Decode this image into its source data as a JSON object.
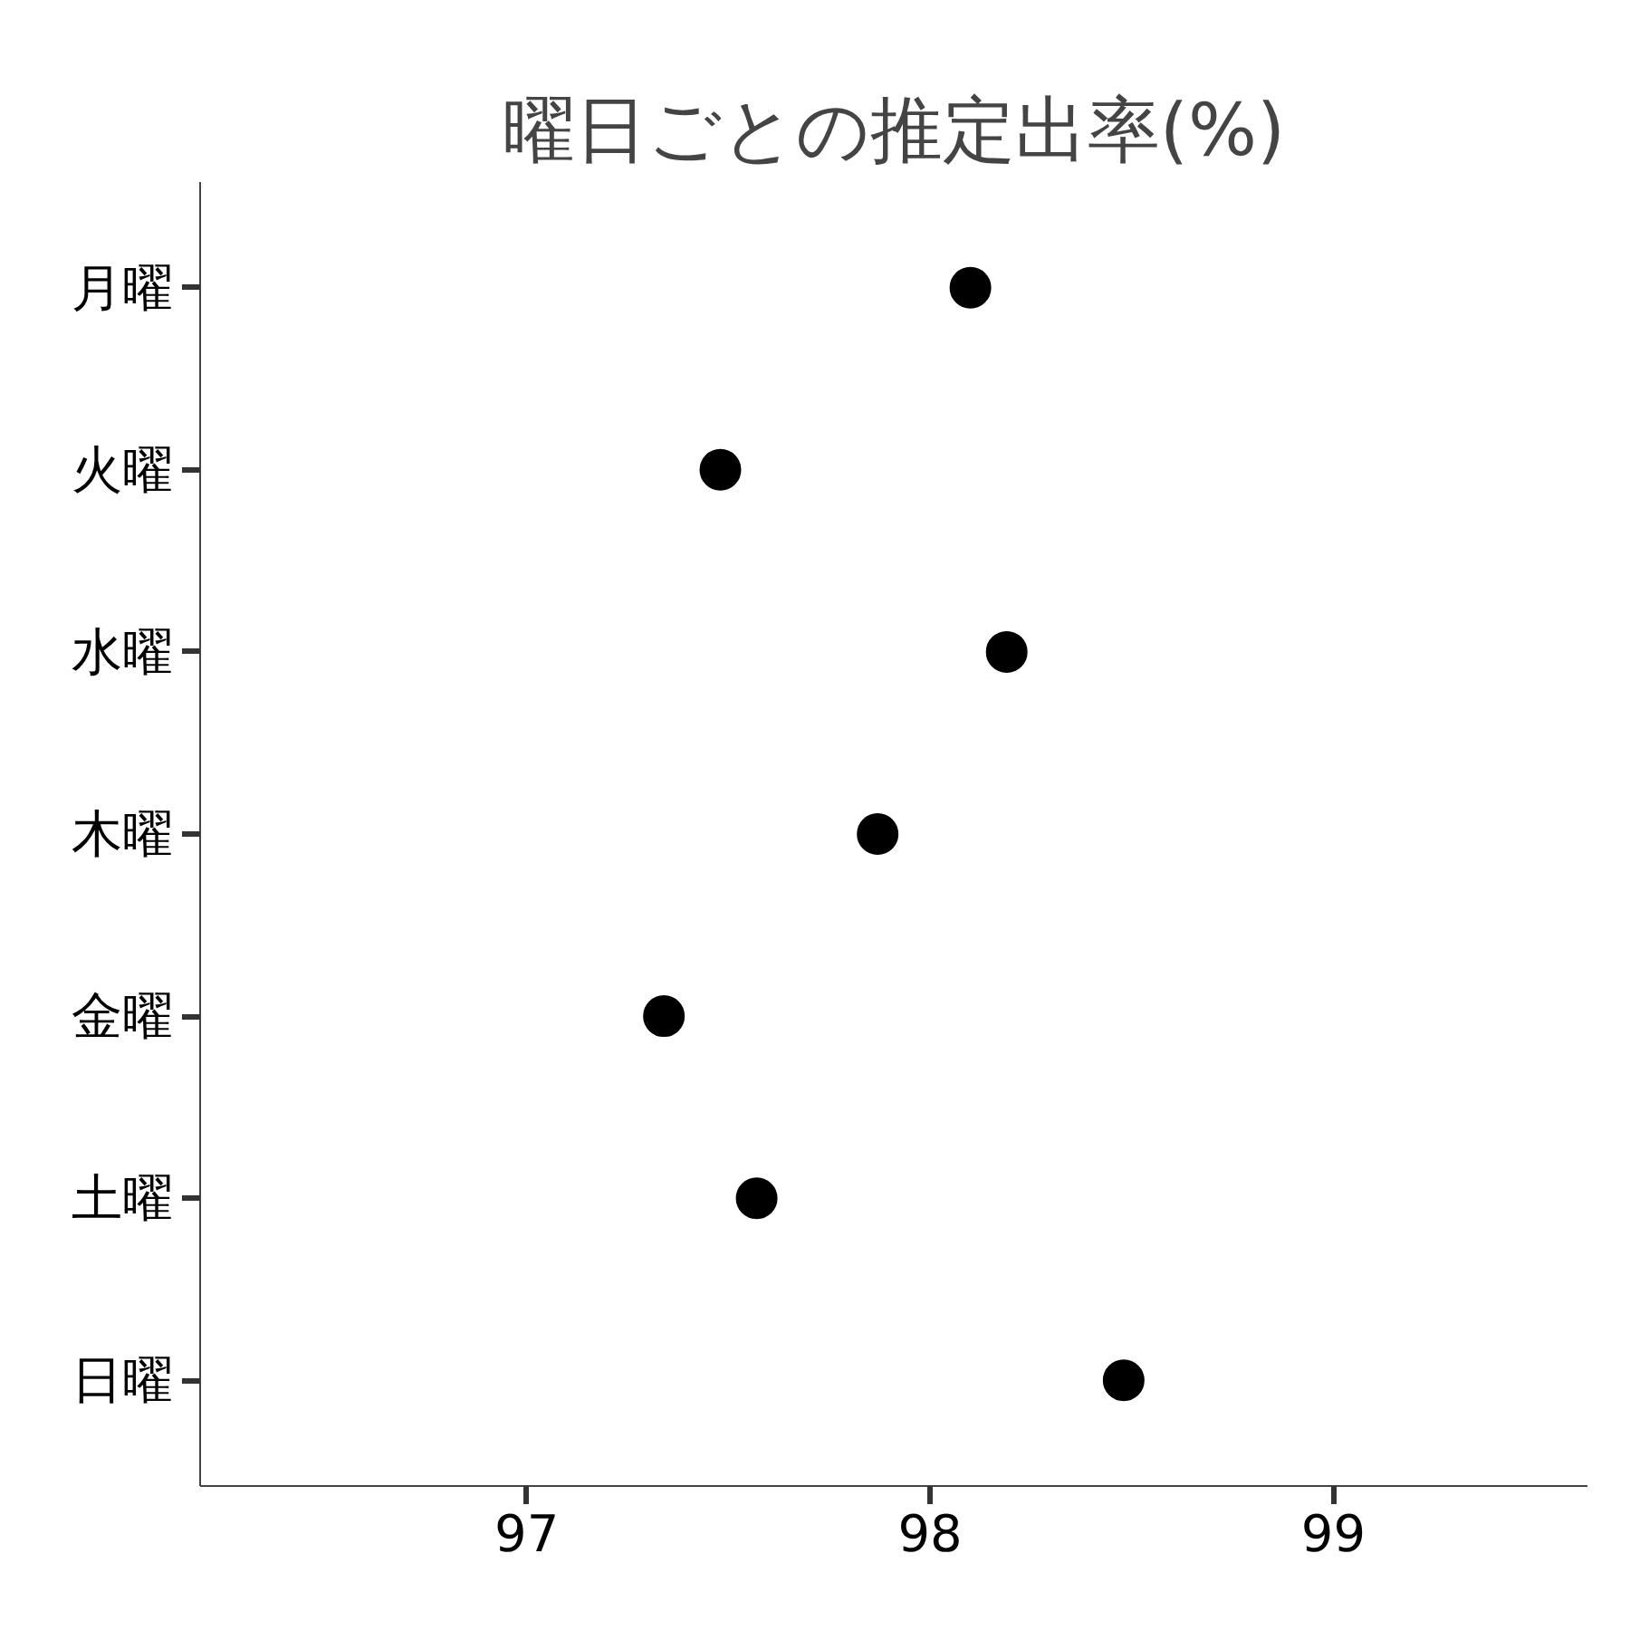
{
  "chart_data": {
    "type": "scatter",
    "title": "曜日ごとの推定出率(%)",
    "categories": [
      "月曜",
      "火曜",
      "水曜",
      "木曜",
      "金曜",
      "土曜",
      "日曜"
    ],
    "orientation": "horizontal",
    "values": [
      98.1,
      97.48,
      98.19,
      97.87,
      97.34,
      97.57,
      98.48
    ],
    "color": "#000000",
    "marker": "circle",
    "grid": false,
    "xlim": [
      96.19,
      99.63
    ],
    "xticks": [
      97,
      98,
      99
    ]
  }
}
